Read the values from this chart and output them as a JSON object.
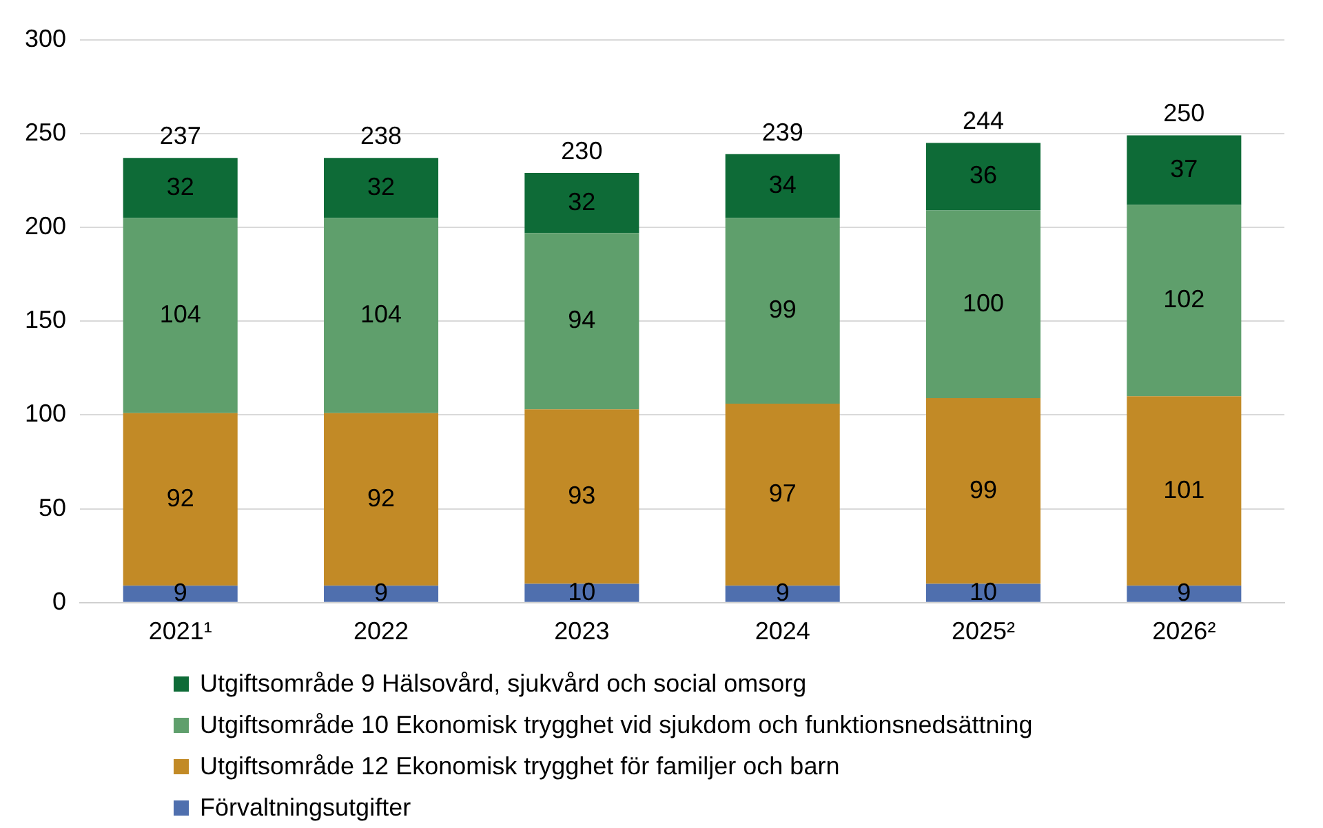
{
  "chart_data": {
    "type": "bar",
    "stacked": true,
    "categories": [
      "2021¹",
      "2022",
      "2023",
      "2024",
      "2025²",
      "2026²"
    ],
    "series": [
      {
        "name": "Förvaltningsutgifter",
        "color": "#4f6fae",
        "values": [
          9,
          9,
          10,
          9,
          10,
          9
        ]
      },
      {
        "name": "Utgiftsområde 12 Ekonomisk trygghet för familjer och barn",
        "color": "#c28a26",
        "values": [
          92,
          92,
          93,
          97,
          99,
          101
        ]
      },
      {
        "name": "Utgiftsområde 10 Ekonomisk trygghet vid sjukdom och funktionsnedsättning",
        "color": "#5f9f6c",
        "values": [
          104,
          104,
          94,
          99,
          100,
          102
        ]
      },
      {
        "name": "Utgiftsområde 9 Hälsovård, sjukvård och social omsorg",
        "color": "#0e6b37",
        "values": [
          32,
          32,
          32,
          34,
          36,
          37
        ]
      }
    ],
    "totals": [
      "237",
      "238",
      "230",
      "239",
      "244",
      "250"
    ],
    "data_labels": true,
    "ylim": [
      0,
      300
    ],
    "yticks": [
      0,
      50,
      100,
      150,
      200,
      250,
      300
    ],
    "grid": "y",
    "legend": "bottom"
  }
}
